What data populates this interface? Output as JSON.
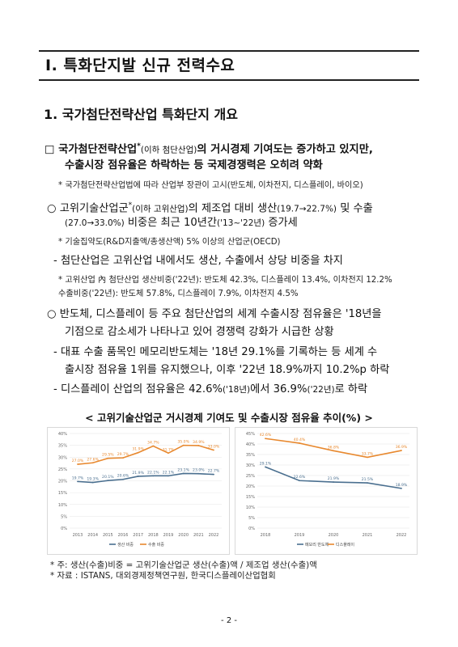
{
  "section": {
    "title": "Ⅰ. 특화단지발 신규 전력수요"
  },
  "subsection": {
    "title": "1. 국가첨단전략산업 특화단지 개요"
  },
  "bullet1": {
    "marker": "□",
    "line1a": "국가첨단전략산업",
    "line1_sup": "*",
    "line1_small": "(이하 첨단산업)",
    "line1b": "의 거시경제 기여도는 증가하고 있지만,",
    "line2": "수출시장 점유율은 하락하는 등 국제경쟁력은 오히려 약화",
    "note": "* 국가첨단전략산업법에 따라 산업부 장관이 고시(반도체, 이차전지, 디스플레이, 바이오)"
  },
  "bullet2": {
    "marker": "○",
    "line1a": "고위기술산업군",
    "line1_sup": "*",
    "line1_small": "(이하 고위산업)",
    "line1b": "의 제조업 대비 생산",
    "line1_small2": "(19.7→22.7%)",
    "line1c": " 및 수출",
    "line2_small": "(27.0→33.0%)",
    "line2b": " 비중은 최근 10년간",
    "line2_small2": "('13~'22년)",
    "line2c": " 증가세",
    "note": "* 기술집약도(R&D지출액/총생산액) 5% 이상의 산업군(OECD)",
    "dash": "- 첨단산업은 고위산업 내에서도 생산, 수출에서 상당 비중을 차지",
    "note2_line1": "* 고위산업 內 첨단산업 생산비중('22년): 반도체 42.3%, 디스플레이 13.4%, 이차전지 12.2%",
    "note2_line2": "수출비중('22년): 반도체 57.8%, 디스플레이 7.9%, 이차전지 4.5%"
  },
  "bullet3": {
    "marker": "○",
    "line1": "반도체, 디스플레이 등 주요 첨단산업의 세계 수출시장 점유율은 '18년을",
    "line2": "기점으로 감소세가 나타나고 있어 경쟁력 강화가 시급한 상황",
    "dash1_line1": "- 대표 수출 품목인 메모리반도체는 '18년 29.1%를 기록하는 등 세계 수",
    "dash1_line2": "출시장 점유율 1위를 유지했으나, 이후 '22년 18.9%까지 10.2%p 하락",
    "dash2_a": "- 디스플레이 산업의 점유율은 42.6%",
    "dash2_s1": "('18년)",
    "dash2_b": "에서 36.9%",
    "dash2_s2": "('22년)",
    "dash2_c": "로 하락"
  },
  "caption": "< 고위기술산업군 거시경제 기여도 및 수출시장 점유율 추이(%) >",
  "chart_data": [
    {
      "type": "line",
      "x": [
        "2013",
        "2014",
        "2015",
        "2016",
        "2017",
        "2018",
        "2019",
        "2020",
        "2021",
        "2022"
      ],
      "ylim": [
        0,
        40
      ],
      "yticks": [
        "0%",
        "5%",
        "10%",
        "15%",
        "20%",
        "25%",
        "30%",
        "35%",
        "40%"
      ],
      "series": [
        {
          "name": "생산 비중",
          "color": "#4a6f8f",
          "values": [
            19.7,
            19.3,
            20.1,
            20.6,
            21.9,
            22.1,
            22.1,
            23.1,
            23.0,
            22.7
          ],
          "labels": [
            "19.7%",
            "19.3%",
            "20.1%",
            "20.6%",
            "21.9%",
            "22.1%",
            "22.1%",
            "23.1%",
            "23.0%",
            "22.7%"
          ]
        },
        {
          "name": "수출 비중",
          "color": "#e8892f",
          "values": [
            27.0,
            27.6,
            29.5,
            29.7,
            31.9,
            34.7,
            31.7,
            35.0,
            34.9,
            33.0
          ],
          "labels": [
            "27.0%",
            "27.6%",
            "29.5%",
            "29.7%",
            "31.9%",
            "34.7%",
            "31.7%",
            "35.0%",
            "34.9%",
            "33.0%"
          ]
        }
      ],
      "legend": "bottom"
    },
    {
      "type": "line",
      "x": [
        "2018",
        "2019",
        "2020",
        "2021",
        "2022"
      ],
      "ylim": [
        0,
        45
      ],
      "yticks": [
        "0%",
        "5%",
        "10%",
        "15%",
        "20%",
        "25%",
        "30%",
        "35%",
        "40%",
        "45%"
      ],
      "series": [
        {
          "name": "메모리 반도체",
          "color": "#4a6f8f",
          "values": [
            29.1,
            22.6,
            21.9,
            21.5,
            18.9
          ],
          "labels": [
            "29.1%",
            "22.6%",
            "21.9%",
            "21.5%",
            "18.9%"
          ]
        },
        {
          "name": "디스플레이",
          "color": "#e8892f",
          "values": [
            42.6,
            40.4,
            36.8,
            33.7,
            36.9
          ],
          "labels": [
            "42.6%",
            "40.4%",
            "36.8%",
            "33.7%",
            "36.9%"
          ]
        }
      ],
      "legend": "bottom"
    }
  ],
  "footnote1": "* 주: 생산(수출)비중 = 고위기술산업군 생산(수출)액 / 제조업 생산(수출)액",
  "footnote2": "* 자료 : ISTANS, 대외경제정책연구원, 한국디스플레이산업협회",
  "page_number": "- 2 -"
}
